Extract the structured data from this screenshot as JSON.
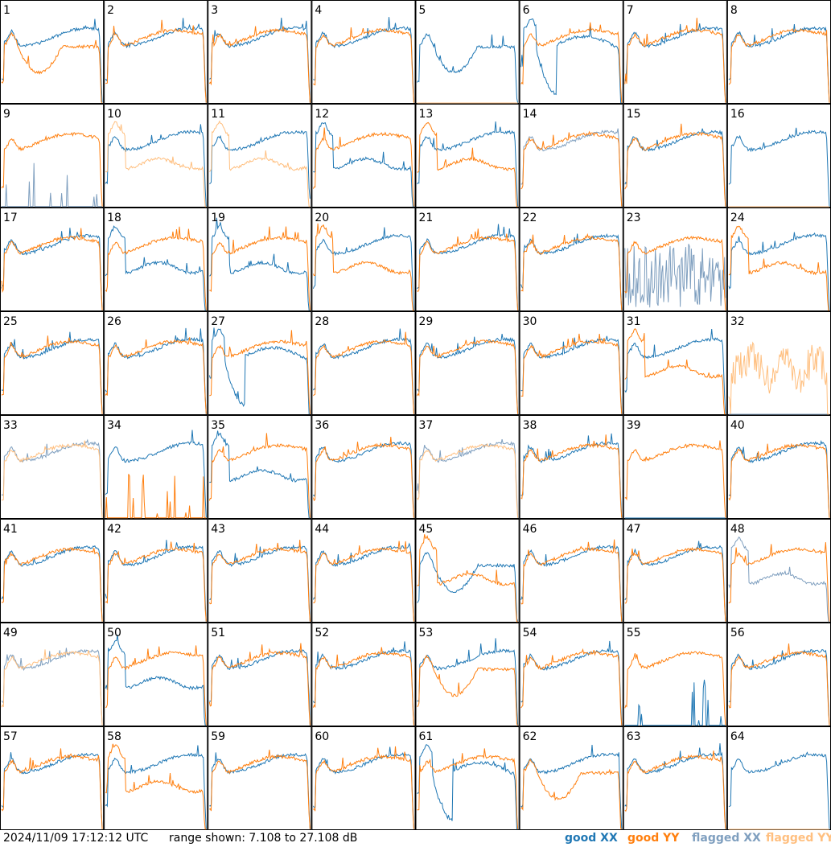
{
  "footer": {
    "timestamp": "2024/11/09 17:12:12 UTC",
    "range": "range shown: 7.108 to 27.108 dB"
  },
  "legend": [
    {
      "prefix": "good ",
      "pol": "XX",
      "color": "#1f77b4"
    },
    {
      "prefix": "good ",
      "pol": "YY",
      "color": "#ff7f0e"
    },
    {
      "prefix": "flagged ",
      "pol": "XX",
      "color": "#7f9fbf"
    },
    {
      "prefix": "flagged ",
      "pol": "YY",
      "color": "#ffbf7f"
    }
  ],
  "colors": {
    "good_xx": "#1f77b4",
    "good_yy": "#ff7f0e",
    "flagged_xx": "#7f9fbf",
    "flagged_yy": "#ffbf7f"
  },
  "chart_data": {
    "type": "line",
    "layout": "small-multiples 8x8",
    "ylim": [
      7.108,
      27.108
    ],
    "units": "dB",
    "panels": [
      {
        "label": "1",
        "xx": "good",
        "yy": "good",
        "xx_shape": "normal",
        "yy_shape": "dip"
      },
      {
        "label": "2",
        "xx": "good",
        "yy": "good",
        "xx_shape": "normal",
        "yy_shape": "normal"
      },
      {
        "label": "3",
        "xx": "good",
        "yy": "good",
        "xx_shape": "normal",
        "yy_shape": "normal"
      },
      {
        "label": "4",
        "xx": "good",
        "yy": "good",
        "xx_shape": "normal",
        "yy_shape": "normal"
      },
      {
        "label": "5",
        "xx": "good",
        "yy": "flagged",
        "xx_shape": "dip",
        "yy_shape": "bottom"
      },
      {
        "label": "6",
        "xx": "good",
        "yy": "good",
        "xx_shape": "deepdip",
        "yy_shape": "normal"
      },
      {
        "label": "7",
        "xx": "good",
        "yy": "good",
        "xx_shape": "normal",
        "yy_shape": "normal"
      },
      {
        "label": "8",
        "xx": "good",
        "yy": "good",
        "xx_shape": "normal",
        "yy_shape": "normal"
      },
      {
        "label": "9",
        "xx": "flagged",
        "yy": "good",
        "xx_shape": "spikes",
        "yy_shape": "normal"
      },
      {
        "label": "10",
        "xx": "good",
        "yy": "flagged",
        "xx_shape": "normal",
        "yy_shape": "low"
      },
      {
        "label": "11",
        "xx": "good",
        "yy": "flagged",
        "xx_shape": "normal",
        "yy_shape": "low"
      },
      {
        "label": "12",
        "xx": "good",
        "yy": "good",
        "xx_shape": "low",
        "yy_shape": "normal"
      },
      {
        "label": "13",
        "xx": "good",
        "yy": "good",
        "xx_shape": "normal",
        "yy_shape": "low"
      },
      {
        "label": "14",
        "xx": "flagged",
        "yy": "good",
        "xx_shape": "normal",
        "yy_shape": "normal"
      },
      {
        "label": "15",
        "xx": "good",
        "yy": "good",
        "xx_shape": "normal",
        "yy_shape": "normal"
      },
      {
        "label": "16",
        "xx": "good",
        "yy": "flagged",
        "xx_shape": "normal",
        "yy_shape": "bottom"
      },
      {
        "label": "17",
        "xx": "good",
        "yy": "good",
        "xx_shape": "normal",
        "yy_shape": "normal"
      },
      {
        "label": "18",
        "xx": "good",
        "yy": "good",
        "xx_shape": "low",
        "yy_shape": "normal"
      },
      {
        "label": "19",
        "xx": "good",
        "yy": "good",
        "xx_shape": "low",
        "yy_shape": "normal"
      },
      {
        "label": "20",
        "xx": "good",
        "yy": "good",
        "xx_shape": "normal",
        "yy_shape": "low"
      },
      {
        "label": "21",
        "xx": "good",
        "yy": "good",
        "xx_shape": "normal",
        "yy_shape": "normal"
      },
      {
        "label": "22",
        "xx": "good",
        "yy": "good",
        "xx_shape": "normal",
        "yy_shape": "normal"
      },
      {
        "label": "23",
        "xx": "flagged",
        "yy": "good",
        "xx_shape": "noise",
        "yy_shape": "normal"
      },
      {
        "label": "24",
        "xx": "good",
        "yy": "good",
        "xx_shape": "normal",
        "yy_shape": "low"
      },
      {
        "label": "25",
        "xx": "good",
        "yy": "good",
        "xx_shape": "normal",
        "yy_shape": "normal"
      },
      {
        "label": "26",
        "xx": "good",
        "yy": "good",
        "xx_shape": "normal",
        "yy_shape": "normal"
      },
      {
        "label": "27",
        "xx": "good",
        "yy": "good",
        "xx_shape": "deepdip",
        "yy_shape": "normal"
      },
      {
        "label": "28",
        "xx": "good",
        "yy": "good",
        "xx_shape": "normal",
        "yy_shape": "normal"
      },
      {
        "label": "29",
        "xx": "good",
        "yy": "good",
        "xx_shape": "normal",
        "yy_shape": "normal"
      },
      {
        "label": "30",
        "xx": "good",
        "yy": "good",
        "xx_shape": "normal",
        "yy_shape": "normal"
      },
      {
        "label": "31",
        "xx": "good",
        "yy": "good",
        "xx_shape": "normal",
        "yy_shape": "low"
      },
      {
        "label": "32",
        "xx": "flagged",
        "yy": "flagged",
        "xx_shape": "bottom",
        "yy_shape": "noisy"
      },
      {
        "label": "33",
        "xx": "flagged",
        "yy": "flagged",
        "xx_shape": "normal",
        "yy_shape": "normal"
      },
      {
        "label": "34",
        "xx": "good",
        "yy": "good",
        "xx_shape": "normal",
        "yy_shape": "spikes"
      },
      {
        "label": "35",
        "xx": "good",
        "yy": "good",
        "xx_shape": "low",
        "yy_shape": "normal"
      },
      {
        "label": "36",
        "xx": "good",
        "yy": "good",
        "xx_shape": "normal",
        "yy_shape": "normal"
      },
      {
        "label": "37",
        "xx": "flagged",
        "yy": "flagged",
        "xx_shape": "normal",
        "yy_shape": "normal"
      },
      {
        "label": "38",
        "xx": "good",
        "yy": "good",
        "xx_shape": "normal",
        "yy_shape": "normal"
      },
      {
        "label": "39",
        "xx": "good",
        "yy": "good",
        "xx_shape": "bottom",
        "yy_shape": "normal"
      },
      {
        "label": "40",
        "xx": "good",
        "yy": "good",
        "xx_shape": "normal",
        "yy_shape": "normal"
      },
      {
        "label": "41",
        "xx": "good",
        "yy": "good",
        "xx_shape": "normal",
        "yy_shape": "normal"
      },
      {
        "label": "42",
        "xx": "good",
        "yy": "good",
        "xx_shape": "normal",
        "yy_shape": "normal"
      },
      {
        "label": "43",
        "xx": "good",
        "yy": "good",
        "xx_shape": "normal",
        "yy_shape": "normal"
      },
      {
        "label": "44",
        "xx": "good",
        "yy": "good",
        "xx_shape": "normal",
        "yy_shape": "normal"
      },
      {
        "label": "45",
        "xx": "good",
        "yy": "good",
        "xx_shape": "dip",
        "yy_shape": "low"
      },
      {
        "label": "46",
        "xx": "good",
        "yy": "good",
        "xx_shape": "normal",
        "yy_shape": "normal"
      },
      {
        "label": "47",
        "xx": "good",
        "yy": "good",
        "xx_shape": "normal",
        "yy_shape": "normal"
      },
      {
        "label": "48",
        "xx": "flagged",
        "yy": "good",
        "xx_shape": "low",
        "yy_shape": "normal"
      },
      {
        "label": "49",
        "xx": "flagged",
        "yy": "flagged",
        "xx_shape": "normal",
        "yy_shape": "normal"
      },
      {
        "label": "50",
        "xx": "good",
        "yy": "good",
        "xx_shape": "low",
        "yy_shape": "normal"
      },
      {
        "label": "51",
        "xx": "good",
        "yy": "good",
        "xx_shape": "normal",
        "yy_shape": "normal"
      },
      {
        "label": "52",
        "xx": "good",
        "yy": "good",
        "xx_shape": "normal",
        "yy_shape": "normal"
      },
      {
        "label": "53",
        "xx": "good",
        "yy": "good",
        "xx_shape": "normal",
        "yy_shape": "dip"
      },
      {
        "label": "54",
        "xx": "good",
        "yy": "good",
        "xx_shape": "normal",
        "yy_shape": "normal"
      },
      {
        "label": "55",
        "xx": "good",
        "yy": "good",
        "xx_shape": "spikes",
        "yy_shape": "normal"
      },
      {
        "label": "56",
        "xx": "good",
        "yy": "good",
        "xx_shape": "normal",
        "yy_shape": "normal"
      },
      {
        "label": "57",
        "xx": "good",
        "yy": "good",
        "xx_shape": "normal",
        "yy_shape": "normal"
      },
      {
        "label": "58",
        "xx": "good",
        "yy": "good",
        "xx_shape": "normal",
        "yy_shape": "low"
      },
      {
        "label": "59",
        "xx": "good",
        "yy": "good",
        "xx_shape": "normal",
        "yy_shape": "normal"
      },
      {
        "label": "60",
        "xx": "good",
        "yy": "good",
        "xx_shape": "normal",
        "yy_shape": "normal"
      },
      {
        "label": "61",
        "xx": "good",
        "yy": "good",
        "xx_shape": "deepdip",
        "yy_shape": "normal"
      },
      {
        "label": "62",
        "xx": "good",
        "yy": "good",
        "xx_shape": "normal",
        "yy_shape": "dip"
      },
      {
        "label": "63",
        "xx": "good",
        "yy": "good",
        "xx_shape": "normal",
        "yy_shape": "normal"
      },
      {
        "label": "64",
        "xx": "good",
        "yy": "flagged",
        "xx_shape": "normal",
        "yy_shape": "bottom"
      }
    ]
  }
}
